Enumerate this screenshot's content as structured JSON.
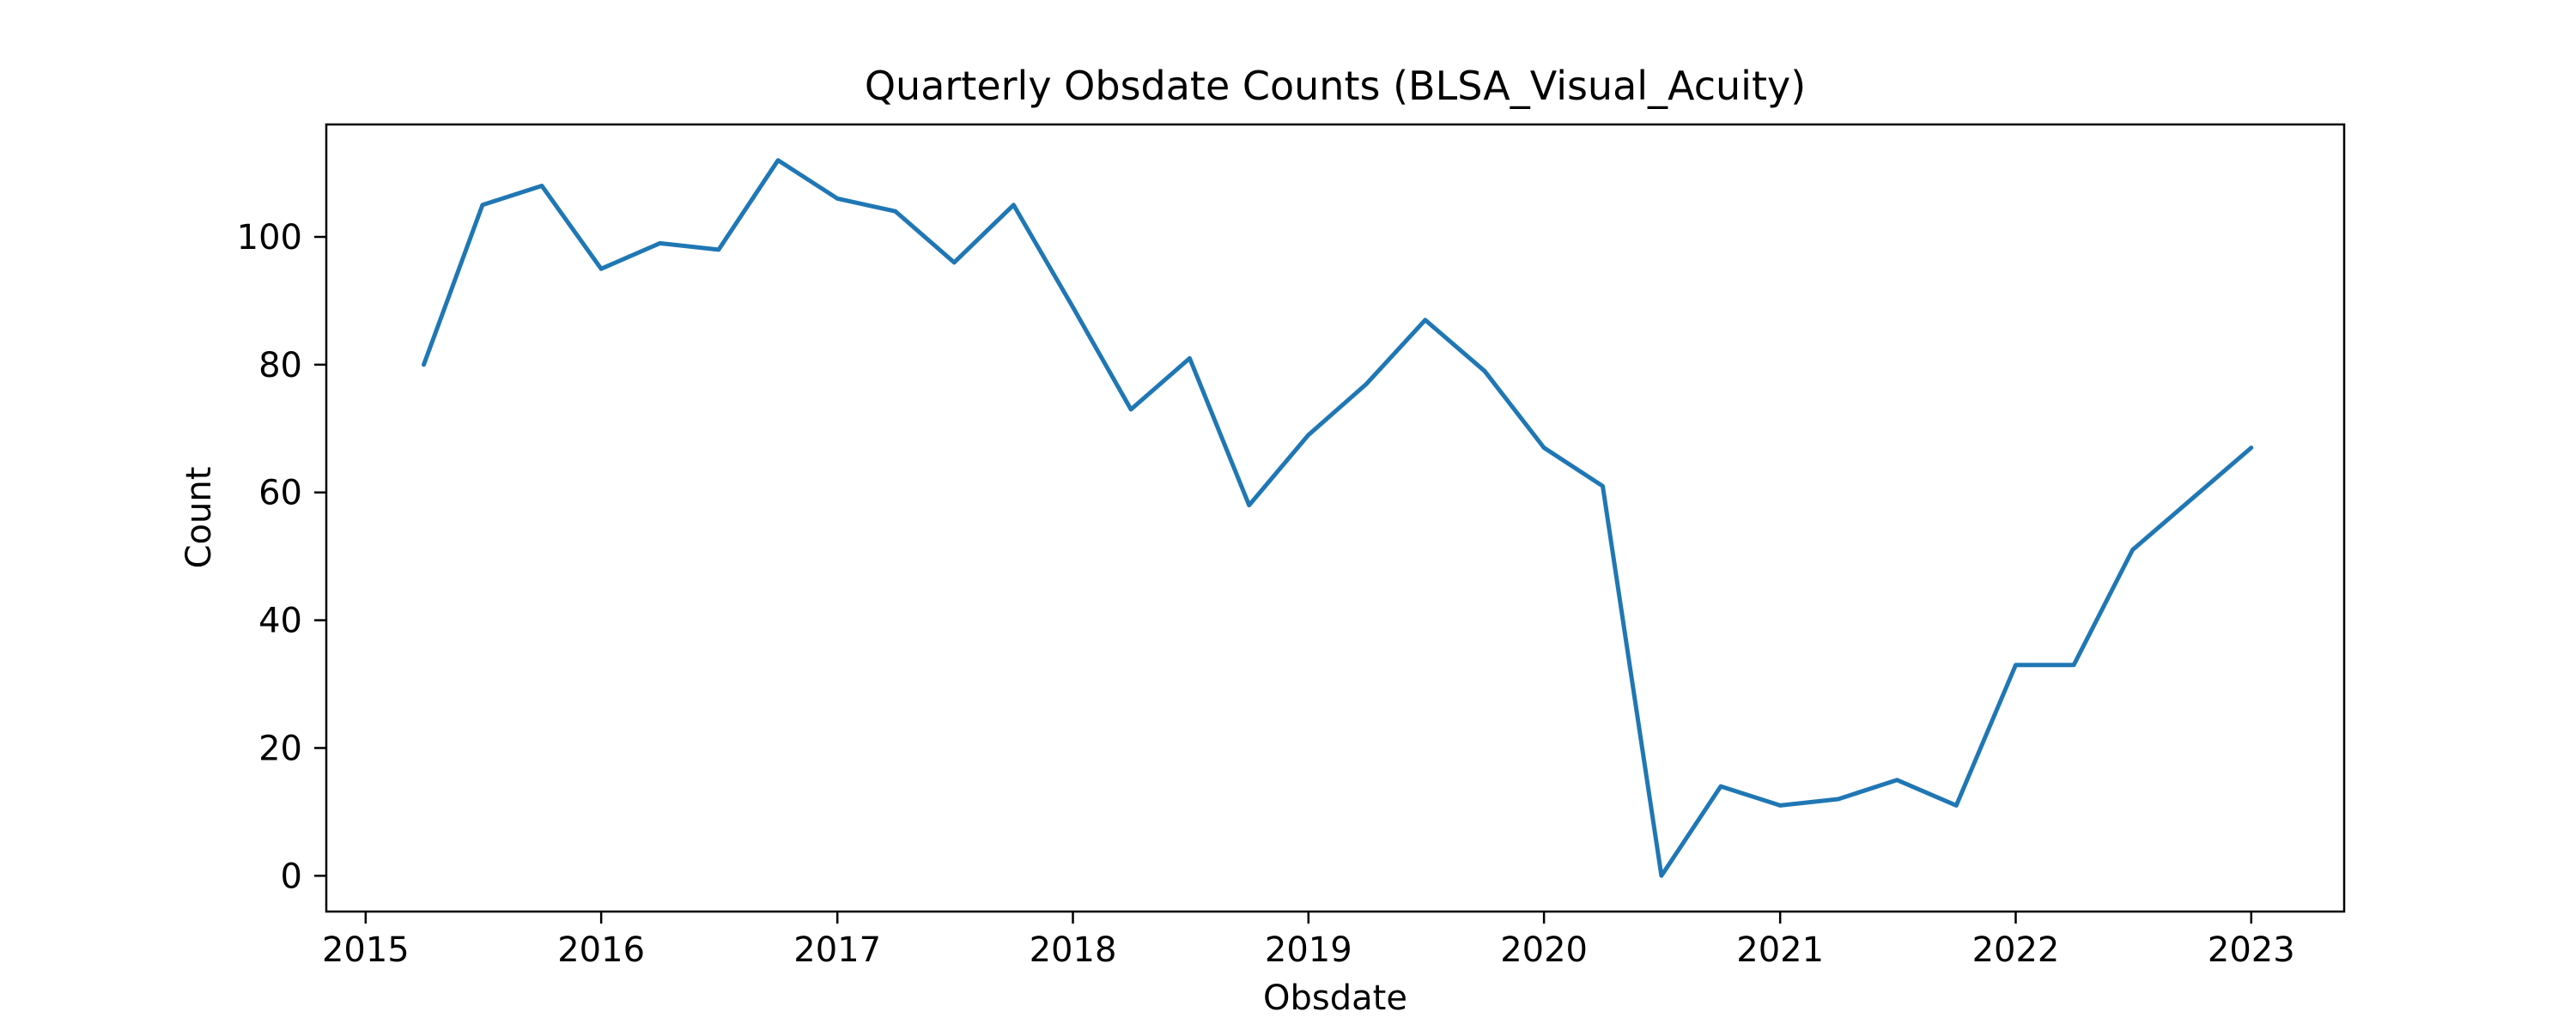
{
  "chart_data": {
    "type": "line",
    "title": "Quarterly Obsdate Counts (BLSA_Visual_Acuity)",
    "xlabel": "Obsdate",
    "ylabel": "Count",
    "x_is_date": true,
    "xlim": [
      "2014-11-01",
      "2023-05-25"
    ],
    "ylim": [
      -5.6,
      117.6
    ],
    "grid": false,
    "x_ticks": [
      {
        "value": "2015-01-01",
        "label": "2015"
      },
      {
        "value": "2016-01-01",
        "label": "2016"
      },
      {
        "value": "2017-01-01",
        "label": "2017"
      },
      {
        "value": "2018-01-01",
        "label": "2018"
      },
      {
        "value": "2019-01-01",
        "label": "2019"
      },
      {
        "value": "2020-01-01",
        "label": "2020"
      },
      {
        "value": "2021-01-01",
        "label": "2021"
      },
      {
        "value": "2022-01-01",
        "label": "2022"
      },
      {
        "value": "2023-01-01",
        "label": "2023"
      }
    ],
    "y_ticks": [
      {
        "value": 0,
        "label": "0"
      },
      {
        "value": 20,
        "label": "20"
      },
      {
        "value": 40,
        "label": "40"
      },
      {
        "value": 60,
        "label": "60"
      },
      {
        "value": 80,
        "label": "80"
      },
      {
        "value": 100,
        "label": "100"
      }
    ],
    "series": [
      {
        "color": "#1f77b4",
        "x": [
          "2015-04-01",
          "2015-07-01",
          "2015-10-01",
          "2016-01-01",
          "2016-04-01",
          "2016-07-01",
          "2016-10-01",
          "2017-01-01",
          "2017-04-01",
          "2017-07-01",
          "2017-10-01",
          "2018-01-01",
          "2018-04-01",
          "2018-07-01",
          "2018-10-01",
          "2019-01-01",
          "2019-04-01",
          "2019-07-01",
          "2019-10-01",
          "2020-01-01",
          "2020-04-01",
          "2020-07-01",
          "2020-10-01",
          "2021-01-01",
          "2021-04-01",
          "2021-07-01",
          "2021-10-01",
          "2022-01-01",
          "2022-04-01",
          "2022-07-01",
          "2022-10-01",
          "2023-01-01"
        ],
        "y": [
          80,
          105,
          108,
          95,
          99,
          98,
          112,
          106,
          104,
          96,
          105,
          89,
          73,
          81,
          58,
          69,
          77,
          87,
          79,
          67,
          61,
          0,
          14,
          11,
          12,
          15,
          11,
          33,
          33,
          51,
          59,
          67
        ]
      }
    ]
  }
}
